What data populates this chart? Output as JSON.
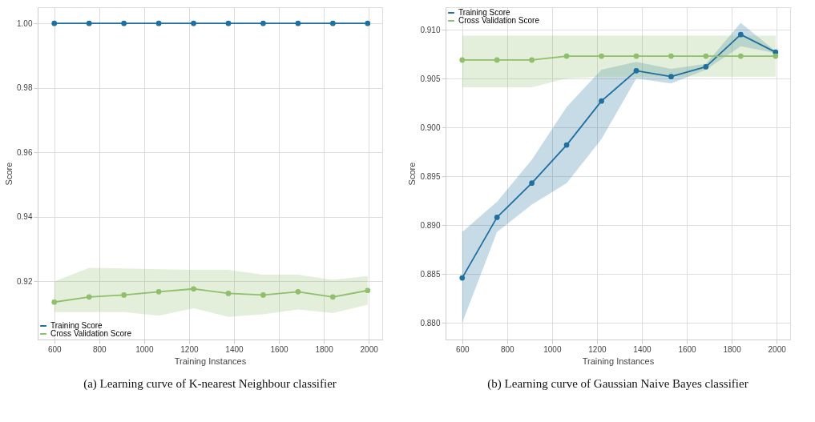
{
  "chart_data": [
    {
      "type": "line",
      "title": "(a) Learning curve of K-nearest Neighbour classifier",
      "xlabel": "Training Instances",
      "ylabel": "Score",
      "x": [
        600,
        755,
        910,
        1065,
        1220,
        1375,
        1530,
        1685,
        1840,
        1995
      ],
      "series": [
        {
          "name": "Training Score",
          "color": "#1f6f9f",
          "values": [
            1.0,
            1.0,
            1.0,
            1.0,
            1.0,
            1.0,
            1.0,
            1.0,
            1.0,
            1.0
          ]
        },
        {
          "name": "Cross Validation Score",
          "color": "#8fbf6a",
          "values": [
            0.9136,
            0.9152,
            0.9158,
            0.9168,
            0.9177,
            0.9163,
            0.9158,
            0.9168,
            0.9152,
            0.9172
          ],
          "lower": [
            0.9105,
            0.9105,
            0.9105,
            0.9094,
            0.9117,
            0.909,
            0.9098,
            0.9113,
            0.9102,
            0.9128
          ],
          "upper": [
            0.92,
            0.9242,
            0.924,
            0.9238,
            0.9236,
            0.9236,
            0.9221,
            0.9221,
            0.9205,
            0.9217
          ]
        }
      ],
      "xlim": [
        526,
        2060
      ],
      "ylim": [
        0.902,
        1.005
      ],
      "xticks": [
        600,
        800,
        1000,
        1200,
        1400,
        1600,
        1800,
        2000
      ],
      "yticks": [
        0.92,
        0.94,
        0.96,
        0.98,
        {
          "value": 1.0,
          "label": "1.00"
        }
      ],
      "grid": true,
      "legend": "bottom left",
      "marker": "circle",
      "line_style": "solid"
    },
    {
      "type": "line",
      "title": "(b) Learning curve of Gaussian Naive Bayes classifier",
      "xlabel": "Training Instances",
      "ylabel": "Score",
      "x": [
        600,
        755,
        910,
        1065,
        1220,
        1375,
        1530,
        1685,
        1840,
        1995
      ],
      "series": [
        {
          "name": "Training Score",
          "color": "#1f6f9f",
          "values": [
            0.8846,
            0.8908,
            0.8943,
            0.8982,
            0.9027,
            0.9058,
            0.9052,
            0.9062,
            0.9095,
            0.9077
          ],
          "lower": [
            0.88,
            0.8893,
            0.8921,
            0.8943,
            0.8988,
            0.905,
            0.9045,
            0.9059,
            0.9083,
            0.9076
          ],
          "upper": [
            0.8893,
            0.8924,
            0.8967,
            0.9021,
            0.9059,
            0.9067,
            0.906,
            0.9065,
            0.9107,
            0.9078
          ]
        },
        {
          "name": "Cross Validation Score",
          "color": "#8fbf6a",
          "values": [
            0.9069,
            0.9069,
            0.9069,
            0.9073,
            0.9073,
            0.9073,
            0.9073,
            0.9073,
            0.9073,
            0.9073
          ],
          "lower": [
            0.9041,
            0.9041,
            0.9041,
            0.905,
            0.9052,
            0.9052,
            0.9052,
            0.9052,
            0.9052,
            0.9052
          ],
          "upper": [
            0.9094,
            0.9094,
            0.9094,
            0.9094,
            0.9094,
            0.9094,
            0.9094,
            0.9094,
            0.9094,
            0.9094
          ]
        }
      ],
      "xlim": [
        526,
        2060
      ],
      "ylim": [
        0.8783,
        0.9123
      ],
      "xticks": [
        600,
        800,
        1000,
        1200,
        1400,
        1600,
        1800,
        2000
      ],
      "yticks": [
        {
          "value": 0.88,
          "label": "0.880"
        },
        {
          "value": 0.885,
          "label": "0.885"
        },
        {
          "value": 0.89,
          "label": "0.890"
        },
        {
          "value": 0.895,
          "label": "0.895"
        },
        {
          "value": 0.9,
          "label": "0.900"
        },
        {
          "value": 0.905,
          "label": "0.905"
        },
        {
          "value": 0.91,
          "label": "0.910"
        }
      ],
      "grid": true,
      "legend": "top left",
      "marker": "circle",
      "line_style": "solid"
    }
  ]
}
